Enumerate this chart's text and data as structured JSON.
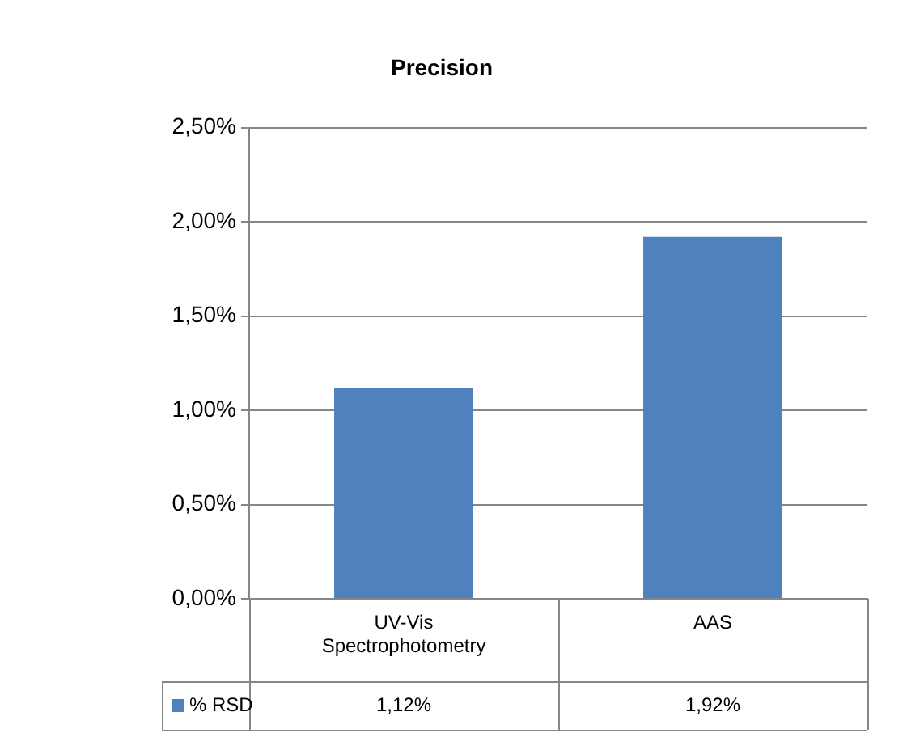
{
  "chart_data": {
    "type": "bar",
    "title": "Precision",
    "categories": [
      "UV-Vis Spectrophotometry",
      "AAS"
    ],
    "series": [
      {
        "name": "% RSD",
        "color": "#4f81bd",
        "values": [
          1.12,
          1.92
        ],
        "value_labels": [
          "1,12%",
          "1,92%"
        ]
      }
    ],
    "ylim": [
      0,
      2.5
    ],
    "yticks": [
      {
        "value": 0,
        "label": "0,00%"
      },
      {
        "value": 0.5,
        "label": "0,50%"
      },
      {
        "value": 1,
        "label": "1,00%"
      },
      {
        "value": 1.5,
        "label": "1,50%"
      },
      {
        "value": 2,
        "label": "2,00%"
      },
      {
        "value": 2.5,
        "label": "2,50%"
      }
    ],
    "grid": "y",
    "legend": "bottom"
  }
}
